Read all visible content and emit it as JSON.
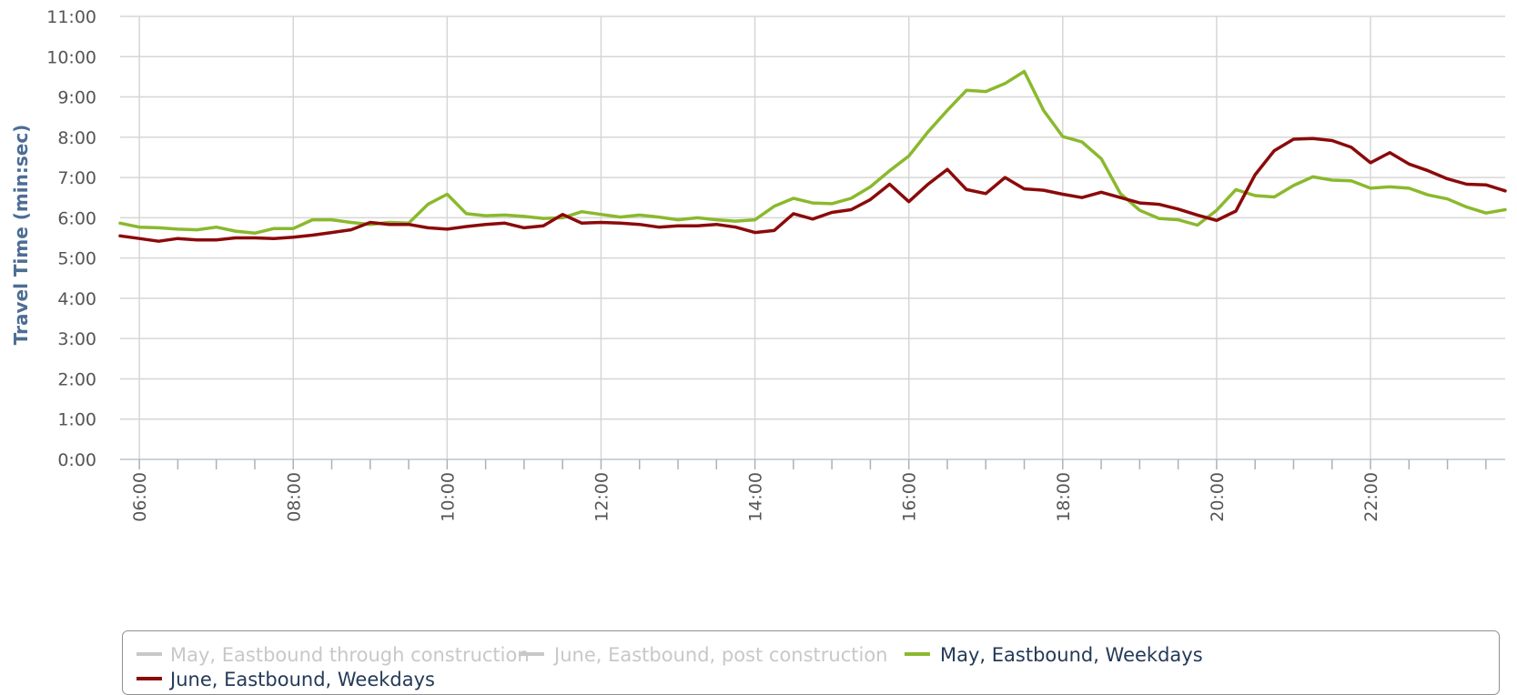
{
  "chart_data": {
    "type": "line",
    "title": "",
    "xlabel": "",
    "ylabel": "Travel Time (min:sec)",
    "xlim": [
      "05:45",
      "23:45"
    ],
    "ylim": [
      "0:00",
      "11:00"
    ],
    "y_ticks": [
      "0:00",
      "1:00",
      "2:00",
      "3:00",
      "4:00",
      "5:00",
      "6:00",
      "7:00",
      "8:00",
      "9:00",
      "10:00",
      "11:00"
    ],
    "x_ticks": [
      "06:00",
      "08:00",
      "10:00",
      "12:00",
      "14:00",
      "16:00",
      "18:00",
      "20:00",
      "22:00"
    ],
    "grid": true,
    "legend_position": "bottom",
    "series": [
      {
        "name": "May, Eastbound through construction",
        "color": "#c8c8c8",
        "visible": false,
        "x": [],
        "y": []
      },
      {
        "name": "June, Eastbound, post construction",
        "color": "#c8c8c8",
        "visible": false,
        "x": [],
        "y": []
      },
      {
        "name": "May, Eastbound, Weekdays",
        "color": "#8ab92d",
        "visible": true,
        "x": [
          "05:45",
          "06:00",
          "06:15",
          "06:30",
          "06:45",
          "07:00",
          "07:15",
          "07:30",
          "07:45",
          "08:00",
          "08:15",
          "08:30",
          "08:45",
          "09:00",
          "09:15",
          "09:30",
          "09:45",
          "10:00",
          "10:15",
          "10:30",
          "10:45",
          "11:00",
          "11:15",
          "11:30",
          "11:45",
          "12:00",
          "12:15",
          "12:30",
          "12:45",
          "13:00",
          "13:15",
          "13:30",
          "13:45",
          "14:00",
          "14:15",
          "14:30",
          "14:45",
          "15:00",
          "15:15",
          "15:30",
          "15:45",
          "16:00",
          "16:15",
          "16:30",
          "16:45",
          "17:00",
          "17:15",
          "17:30",
          "17:45",
          "18:00",
          "18:15",
          "18:30",
          "18:45",
          "19:00",
          "19:15",
          "19:30",
          "19:45",
          "20:00",
          "20:15",
          "20:30",
          "20:45",
          "21:00",
          "21:15",
          "21:30",
          "21:45",
          "22:00",
          "22:15",
          "22:30",
          "22:45",
          "23:00",
          "23:15",
          "23:30",
          "23:45"
        ],
        "y": [
          "5:52",
          "5:46",
          "5:45",
          "5:43",
          "5:42",
          "5:46",
          "5:40",
          "5:37",
          "5:44",
          "5:44",
          "5:57",
          "5:57",
          "5:53",
          "5:50",
          "5:53",
          "5:52",
          "6:20",
          "6:35",
          "6:06",
          "6:03",
          "6:04",
          "6:02",
          "5:59",
          "6:00",
          "6:09",
          "6:05",
          "6:01",
          "6:04",
          "6:01",
          "5:57",
          "6:00",
          "5:57",
          "5:55",
          "5:57",
          "6:17",
          "6:29",
          "6:22",
          "6:21",
          "6:29",
          "6:46",
          "7:10",
          "7:32",
          "8:08",
          "8:40",
          "9:10",
          "9:08",
          "9:20",
          "9:38",
          "8:40",
          "8:01",
          "7:53",
          "7:28",
          "6:36",
          "6:11",
          "5:59",
          "5:57",
          "5:49",
          "6:11",
          "6:42",
          "6:33",
          "6:31",
          "6:48",
          "7:01",
          "6:56",
          "6:55",
          "6:44",
          "6:46",
          "6:44",
          "6:34",
          "6:28",
          "6:16",
          "6:07",
          "6:12"
        ]
      },
      {
        "name": "June, Eastbound, Weekdays",
        "color": "#8b0a0a",
        "visible": true,
        "x": [
          "05:45",
          "06:00",
          "06:15",
          "06:30",
          "06:45",
          "07:00",
          "07:15",
          "07:30",
          "07:45",
          "08:00",
          "08:15",
          "08:30",
          "08:45",
          "09:00",
          "09:15",
          "09:30",
          "09:45",
          "10:00",
          "10:15",
          "10:30",
          "10:45",
          "11:00",
          "11:15",
          "11:30",
          "11:45",
          "12:00",
          "12:15",
          "12:30",
          "12:45",
          "13:00",
          "13:15",
          "13:30",
          "13:45",
          "14:00",
          "14:15",
          "14:30",
          "14:45",
          "15:00",
          "15:15",
          "15:30",
          "15:45",
          "16:00",
          "16:15",
          "16:30",
          "16:45",
          "17:00",
          "17:15",
          "17:30",
          "17:45",
          "18:00",
          "18:15",
          "18:30",
          "18:45",
          "19:00",
          "19:15",
          "19:30",
          "19:45",
          "20:00",
          "20:15",
          "20:30",
          "20:45",
          "21:00",
          "21:15",
          "21:30",
          "21:45",
          "22:00",
          "22:15",
          "22:30",
          "22:45",
          "23:00",
          "23:15",
          "23:30",
          "23:45"
        ],
        "y": [
          "5:33",
          "5:29",
          "5:25",
          "5:29",
          "5:27",
          "5:27",
          "5:30",
          "5:30",
          "5:29",
          "5:31",
          "5:34",
          "5:38",
          "5:42",
          "5:53",
          "5:50",
          "5:50",
          "5:45",
          "5:43",
          "5:47",
          "5:50",
          "5:52",
          "5:45",
          "5:48",
          "6:05",
          "5:52",
          "5:53",
          "5:52",
          "5:50",
          "5:46",
          "5:48",
          "5:48",
          "5:50",
          "5:46",
          "5:38",
          "5:41",
          "6:06",
          "5:58",
          "6:08",
          "6:12",
          "6:27",
          "6:50",
          "6:24",
          "6:50",
          "7:12",
          "6:42",
          "6:36",
          "7:00",
          "6:43",
          "6:41",
          "6:35",
          "6:30",
          "6:38",
          "6:30",
          "6:22",
          "6:20",
          "6:13",
          "6:04",
          "5:56",
          "6:10",
          "7:04",
          "7:40",
          "7:57",
          "7:58",
          "7:55",
          "7:45",
          "7:22",
          "7:37",
          "7:20",
          "7:10",
          "6:58",
          "6:50",
          "6:49",
          "6:40"
        ]
      }
    ]
  }
}
